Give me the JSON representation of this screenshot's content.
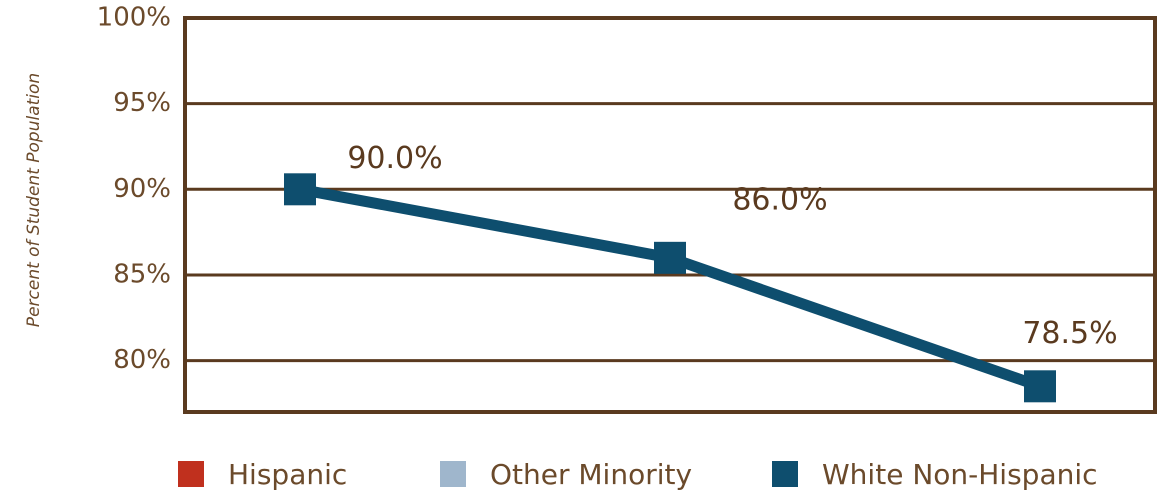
{
  "chart_data": {
    "type": "line",
    "y_label": "Percent of Student Population",
    "categories": [
      null,
      null,
      null
    ],
    "series": [
      {
        "name": "Hispanic",
        "color": "#c0301e",
        "values": [
          null,
          null,
          null
        ]
      },
      {
        "name": "Other Minority",
        "color": "#9fb6cc",
        "values": [
          null,
          null,
          null
        ]
      },
      {
        "name": "White Non-Hispanic",
        "color": "#0e4e6e",
        "values": [
          90.0,
          86.0,
          78.5
        ],
        "value_labels": [
          "90.0%",
          "86.0%",
          "78.5%"
        ]
      }
    ],
    "ylim": [
      77,
      100
    ],
    "yticks": [
      {
        "value": 80,
        "label": "80%"
      },
      {
        "value": 85,
        "label": "85%"
      },
      {
        "value": 90,
        "label": "90%"
      },
      {
        "value": 95,
        "label": "95%"
      },
      {
        "value": 100,
        "label": "100%"
      }
    ],
    "grid": true
  }
}
